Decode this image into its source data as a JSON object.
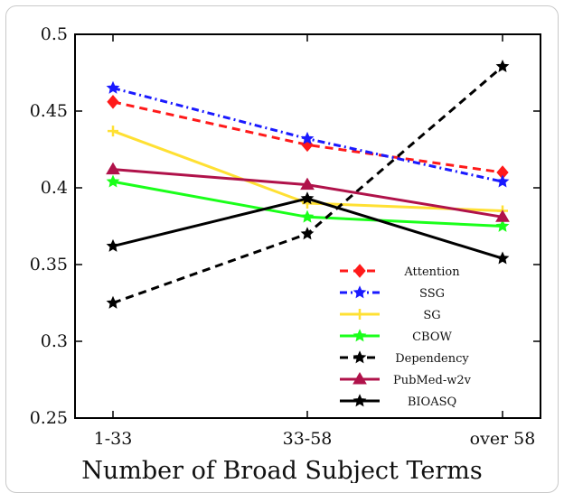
{
  "chart_data": {
    "type": "line",
    "categories": [
      "1-33",
      "33-58",
      "over 58"
    ],
    "xlabel": "Number of Broad Subject Terms",
    "ylabel": "",
    "title": "",
    "ylim": [
      0.25,
      0.5
    ],
    "yticks": [
      "0.25",
      "0.3",
      "0.35",
      "0.4",
      "0.45",
      "0.5"
    ],
    "grid": false,
    "legend_position": "lower-right",
    "series": [
      {
        "name": "Attention",
        "values": [
          0.456,
          0.428,
          0.41
        ],
        "color": "#ff1a1a",
        "dash": "dashed",
        "marker": "diamond"
      },
      {
        "name": "SSG",
        "values": [
          0.465,
          0.432,
          0.404
        ],
        "color": "#1a1aff",
        "dash": "dashdot",
        "marker": "star"
      },
      {
        "name": "SG",
        "values": [
          0.437,
          0.39,
          0.385
        ],
        "color": "#ffe033",
        "dash": "solid",
        "marker": "plus"
      },
      {
        "name": "CBOW",
        "values": [
          0.404,
          0.381,
          0.375
        ],
        "color": "#1aff1a",
        "dash": "solid",
        "marker": "star"
      },
      {
        "name": "Dependency",
        "values": [
          0.325,
          0.37,
          0.479
        ],
        "color": "#000000",
        "dash": "dashed",
        "marker": "star"
      },
      {
        "name": "PubMed-w2v",
        "values": [
          0.412,
          0.402,
          0.381
        ],
        "color": "#b0124a",
        "dash": "solid",
        "marker": "triangle"
      },
      {
        "name": "BIOASQ",
        "values": [
          0.362,
          0.393,
          0.354
        ],
        "color": "#000000",
        "dash": "solid",
        "marker": "star"
      }
    ]
  }
}
